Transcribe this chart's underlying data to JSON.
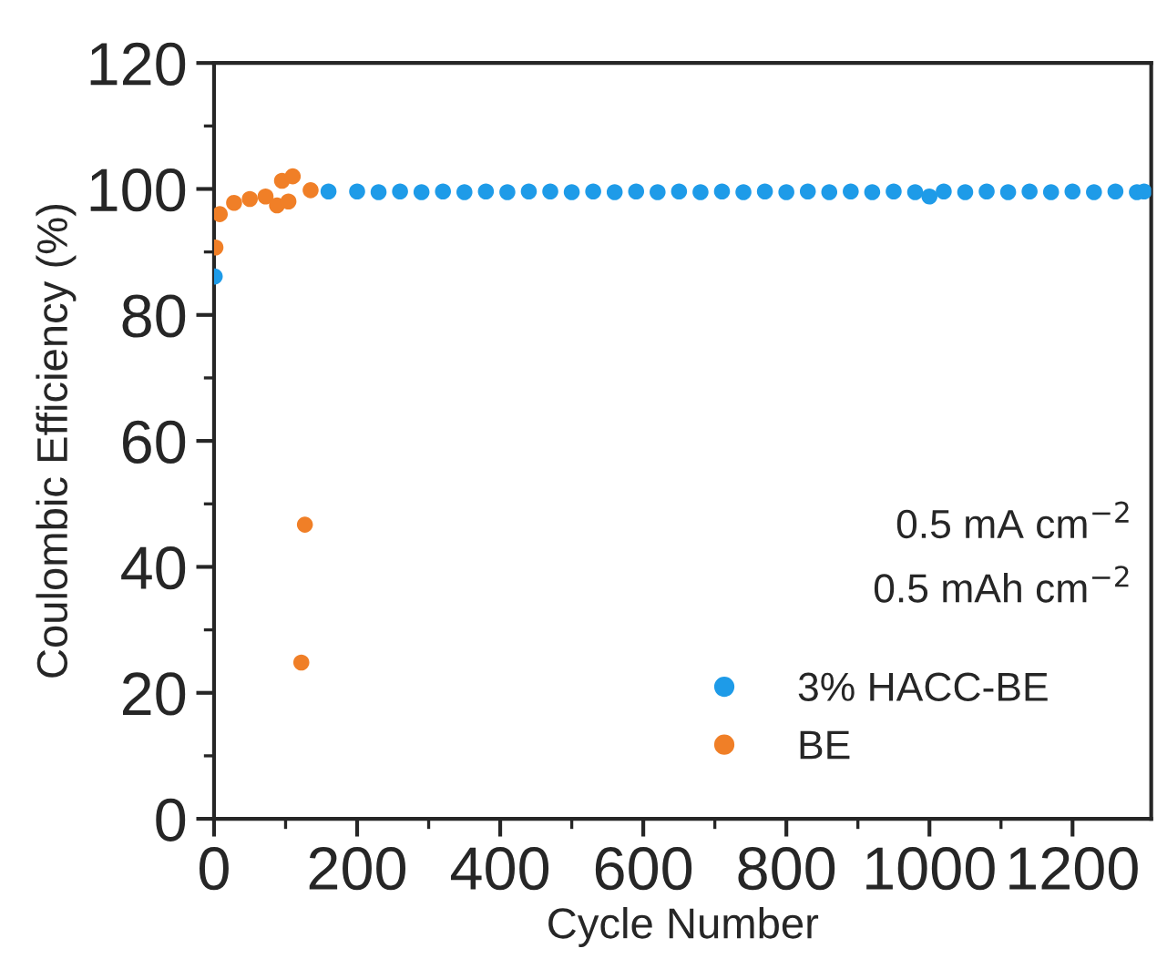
{
  "chart_data": {
    "type": "scatter",
    "xlabel": "Cycle Number",
    "ylabel": "Coulombic Efficiency (%)",
    "xlim": [
      0,
      1310
    ],
    "xticks": [
      0,
      {
        "value": 100,
        "label": null
      },
      200,
      {
        "value": 300,
        "label": null
      },
      400,
      {
        "value": 500,
        "label": null
      },
      600,
      {
        "value": 700,
        "label": null
      },
      800,
      {
        "value": 900,
        "label": null
      },
      1000,
      {
        "value": 1100,
        "label": null
      },
      1200
    ],
    "ylim": [
      0,
      120
    ],
    "yticks": [
      0,
      {
        "value": 10,
        "label": null
      },
      20,
      {
        "value": 30,
        "label": null
      },
      40,
      {
        "value": 50,
        "label": null
      },
      60,
      {
        "value": 70,
        "label": null
      },
      80,
      {
        "value": 90,
        "label": null
      },
      100,
      {
        "value": 110,
        "label": null
      },
      120
    ],
    "marker": "circle",
    "legend": "bottom right",
    "annotations": [
      "0.5 mA cm$^{−2}$",
      "0.5 mAh cm$^{−2}$"
    ],
    "series": [
      {
        "name": "3% HACC-BE",
        "color": "#1e9be8",
        "x": [
          1,
          160,
          200,
          230,
          260,
          290,
          320,
          350,
          380,
          410,
          440,
          470,
          500,
          530,
          560,
          590,
          620,
          650,
          680,
          710,
          740,
          770,
          800,
          830,
          860,
          890,
          920,
          950,
          980,
          1000,
          1020,
          1050,
          1080,
          1110,
          1140,
          1170,
          1200,
          1230,
          1260,
          1290,
          1300
        ],
        "values": [
          86.1,
          99.6,
          99.6,
          99.5,
          99.6,
          99.5,
          99.6,
          99.5,
          99.6,
          99.5,
          99.6,
          99.6,
          99.5,
          99.6,
          99.5,
          99.6,
          99.5,
          99.6,
          99.5,
          99.6,
          99.5,
          99.6,
          99.5,
          99.6,
          99.5,
          99.6,
          99.5,
          99.6,
          99.5,
          98.8,
          99.6,
          99.5,
          99.6,
          99.5,
          99.6,
          99.5,
          99.6,
          99.5,
          99.6,
          99.5,
          99.6
        ]
      },
      {
        "name": "BE",
        "color": "#f07f27",
        "x": [
          2,
          8,
          28,
          50,
          72,
          88,
          95,
          104,
          110,
          122,
          127,
          135
        ],
        "values": [
          90.7,
          96.0,
          97.8,
          98.4,
          98.8,
          97.4,
          101.3,
          98.0,
          102.0,
          24.8,
          46.7,
          99.8
        ]
      }
    ]
  }
}
